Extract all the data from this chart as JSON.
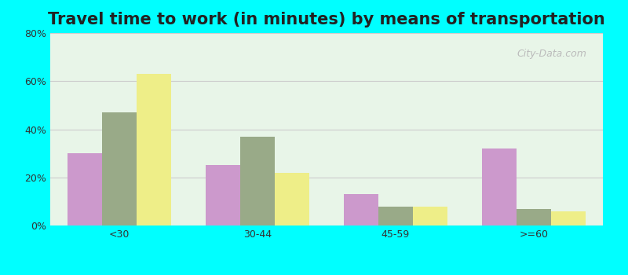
{
  "title": "Travel time to work (in minutes) by means of transportation",
  "categories": [
    "<30",
    "30-44",
    "45-59",
    ">=60"
  ],
  "series": {
    "Public transportation - Florida": [
      30,
      25,
      13,
      32
    ],
    "Other means - Polk City": [
      47,
      37,
      8,
      7
    ],
    "Other means - Florida": [
      63,
      22,
      8,
      6
    ]
  },
  "colors": {
    "Public transportation - Florida": "#cc99cc",
    "Other means - Polk City": "#99aa88",
    "Other means - Florida": "#eeee88"
  },
  "legend_colors": {
    "Public transportation - Florida": "#ddaadd",
    "Other means - Polk City": "#bbcc99",
    "Other means - Florida": "#eeee66"
  },
  "ylim": [
    0,
    80
  ],
  "yticks": [
    0,
    20,
    40,
    60,
    80
  ],
  "ytick_labels": [
    "0%",
    "20%",
    "40%",
    "60%",
    "80%"
  ],
  "outer_bg": "#00ffff",
  "plot_bg": "#e8f5e8",
  "title_fontsize": 15,
  "bar_width": 0.25,
  "grid_color": "#cccccc"
}
